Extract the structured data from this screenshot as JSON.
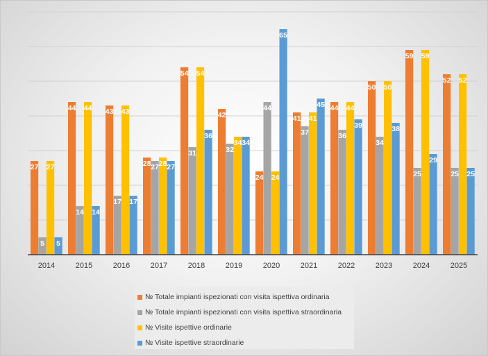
{
  "chart_data": {
    "type": "bar",
    "categories": [
      "2014",
      "2015",
      "2016",
      "2017",
      "2018",
      "2019",
      "2020",
      "2021",
      "2022",
      "2023",
      "2024",
      "2025"
    ],
    "ylim": [
      0,
      70
    ],
    "grid": true,
    "legend_position": "bottom",
    "series": [
      {
        "name": "№ Totale impianti ispezionati con visita ispettiva ordinaria",
        "color": "#ed7d31",
        "values": [
          27,
          44,
          43,
          28,
          54,
          42,
          24,
          41,
          44,
          50,
          59,
          52
        ]
      },
      {
        "name": "№ Totale impianti ispezionati con visita ispettiva straordinaria",
        "color": "#a5a5a5",
        "values": [
          5,
          14,
          17,
          27,
          31,
          32,
          44,
          37,
          36,
          34,
          25,
          25
        ]
      },
      {
        "name": "№  Visite ispettive ordinarie",
        "color": "#ffc000",
        "values": [
          27,
          44,
          43,
          28,
          54,
          34,
          24,
          41,
          44,
          50,
          59,
          52
        ]
      },
      {
        "name": "№ Visite ispettive straordinarie",
        "color": "#5b9bd5",
        "values": [
          5,
          14,
          17,
          27,
          36,
          34,
          65,
          45,
          39,
          38,
          29,
          25
        ]
      }
    ]
  }
}
